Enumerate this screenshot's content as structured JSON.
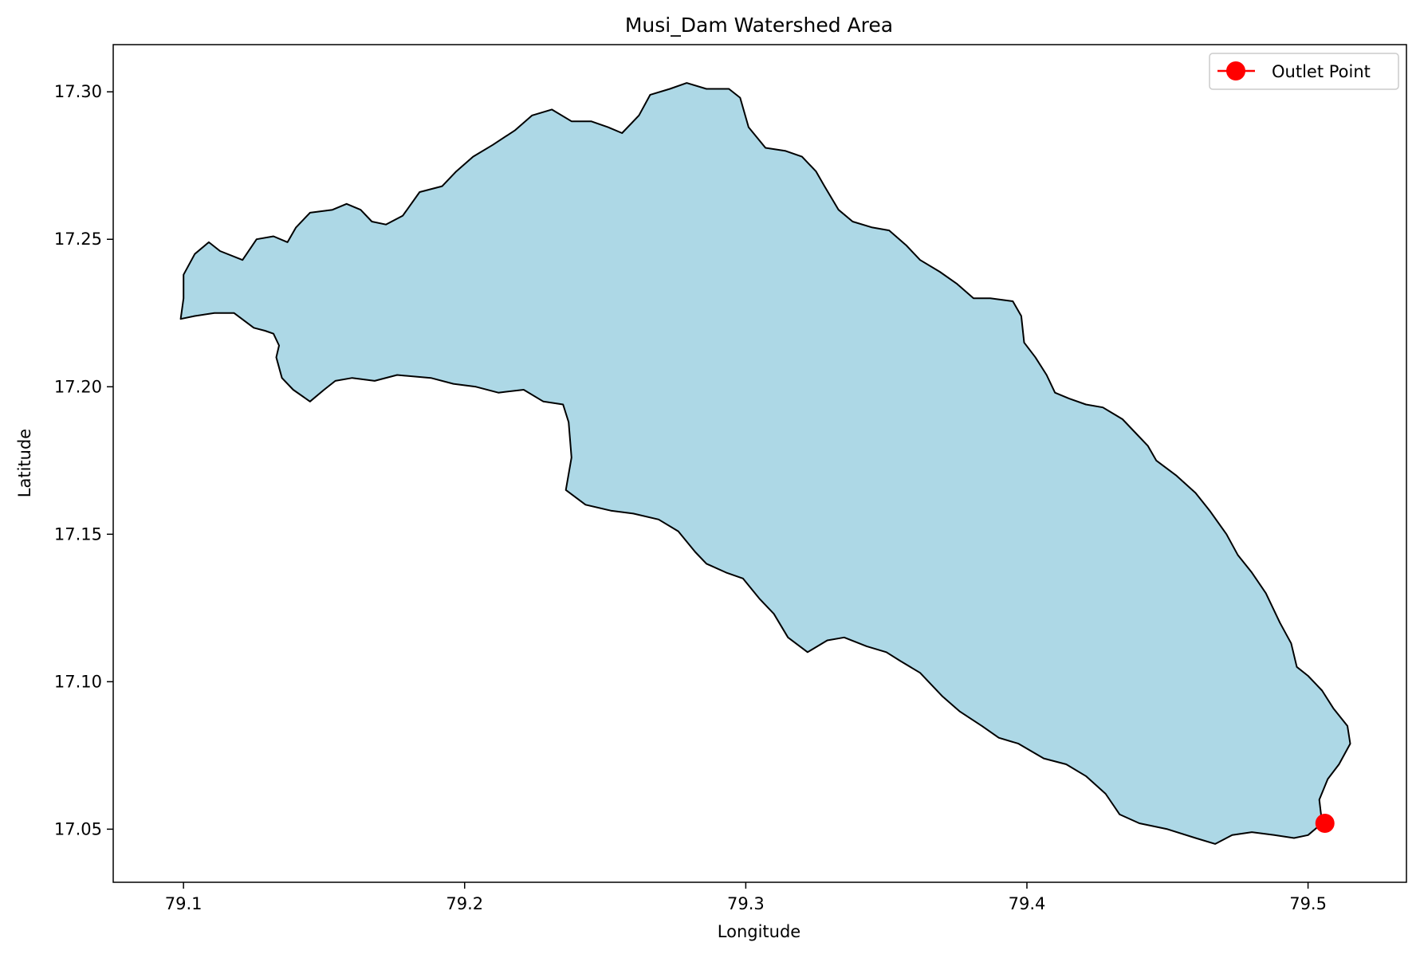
{
  "chart_data": {
    "type": "map",
    "title": "Musi_Dam Watershed Area",
    "xlabel": "Longitude",
    "ylabel": "Latitude",
    "xlim": [
      79.075,
      79.535
    ],
    "ylim": [
      17.032,
      17.316
    ],
    "x_ticks": [
      79.1,
      79.2,
      79.3,
      79.4,
      79.5
    ],
    "x_tick_labels": [
      "79.1",
      "79.2",
      "79.3",
      "79.4",
      "79.5"
    ],
    "y_ticks": [
      17.05,
      17.1,
      17.15,
      17.2,
      17.25,
      17.3
    ],
    "y_tick_labels": [
      "17.05",
      "17.10",
      "17.15",
      "17.20",
      "17.25",
      "17.30"
    ],
    "grid": false,
    "legend": {
      "position": "upper-right",
      "entries": [
        {
          "label": "Outlet Point",
          "color": "#ff0000",
          "marker": "circle-line"
        }
      ]
    },
    "watershed": {
      "fill_color": "#add8e6",
      "edge_color": "#000000",
      "boundary": [
        [
          79.1,
          17.238
        ],
        [
          79.104,
          17.245
        ],
        [
          79.109,
          17.249
        ],
        [
          79.113,
          17.246
        ],
        [
          79.121,
          17.243
        ],
        [
          79.126,
          17.25
        ],
        [
          79.132,
          17.251
        ],
        [
          79.137,
          17.249
        ],
        [
          79.14,
          17.254
        ],
        [
          79.145,
          17.259
        ],
        [
          79.153,
          17.26
        ],
        [
          79.158,
          17.262
        ],
        [
          79.163,
          17.26
        ],
        [
          79.167,
          17.256
        ],
        [
          79.172,
          17.255
        ],
        [
          79.178,
          17.258
        ],
        [
          79.184,
          17.266
        ],
        [
          79.192,
          17.268
        ],
        [
          79.197,
          17.273
        ],
        [
          79.203,
          17.278
        ],
        [
          79.21,
          17.282
        ],
        [
          79.218,
          17.287
        ],
        [
          79.224,
          17.292
        ],
        [
          79.231,
          17.294
        ],
        [
          79.238,
          17.29
        ],
        [
          79.245,
          17.29
        ],
        [
          79.251,
          17.288
        ],
        [
          79.256,
          17.286
        ],
        [
          79.262,
          17.292
        ],
        [
          79.266,
          17.299
        ],
        [
          79.273,
          17.301
        ],
        [
          79.279,
          17.303
        ],
        [
          79.286,
          17.301
        ],
        [
          79.294,
          17.301
        ],
        [
          79.298,
          17.298
        ],
        [
          79.301,
          17.288
        ],
        [
          79.307,
          17.281
        ],
        [
          79.314,
          17.28
        ],
        [
          79.32,
          17.278
        ],
        [
          79.325,
          17.273
        ],
        [
          79.328,
          17.268
        ],
        [
          79.333,
          17.26
        ],
        [
          79.338,
          17.256
        ],
        [
          79.345,
          17.254
        ],
        [
          79.351,
          17.253
        ],
        [
          79.357,
          17.248
        ],
        [
          79.362,
          17.243
        ],
        [
          79.369,
          17.239
        ],
        [
          79.375,
          17.235
        ],
        [
          79.381,
          17.23
        ],
        [
          79.387,
          17.23
        ],
        [
          79.395,
          17.229
        ],
        [
          79.398,
          17.224
        ],
        [
          79.399,
          17.215
        ],
        [
          79.403,
          17.21
        ],
        [
          79.407,
          17.204
        ],
        [
          79.41,
          17.198
        ],
        [
          79.415,
          17.196
        ],
        [
          79.421,
          17.194
        ],
        [
          79.427,
          17.193
        ],
        [
          79.434,
          17.189
        ],
        [
          79.439,
          17.184
        ],
        [
          79.443,
          17.18
        ],
        [
          79.446,
          17.175
        ],
        [
          79.453,
          17.17
        ],
        [
          79.46,
          17.164
        ],
        [
          79.465,
          17.158
        ],
        [
          79.471,
          17.15
        ],
        [
          79.475,
          17.143
        ],
        [
          79.48,
          17.137
        ],
        [
          79.485,
          17.13
        ],
        [
          79.49,
          17.12
        ],
        [
          79.494,
          17.113
        ],
        [
          79.496,
          17.105
        ],
        [
          79.5,
          17.102
        ],
        [
          79.505,
          17.097
        ],
        [
          79.509,
          17.091
        ],
        [
          79.514,
          17.085
        ],
        [
          79.515,
          17.079
        ],
        [
          79.511,
          17.072
        ],
        [
          79.507,
          17.067
        ],
        [
          79.504,
          17.06
        ],
        [
          79.505,
          17.052
        ],
        [
          79.5,
          17.048
        ],
        [
          79.495,
          17.047
        ],
        [
          79.488,
          17.048
        ],
        [
          79.48,
          17.049
        ],
        [
          79.473,
          17.048
        ],
        [
          79.467,
          17.045
        ],
        [
          79.46,
          17.047
        ],
        [
          79.45,
          17.05
        ],
        [
          79.44,
          17.052
        ],
        [
          79.433,
          17.055
        ],
        [
          79.428,
          17.062
        ],
        [
          79.421,
          17.068
        ],
        [
          79.414,
          17.072
        ],
        [
          79.406,
          17.074
        ],
        [
          79.397,
          17.079
        ],
        [
          79.39,
          17.081
        ],
        [
          79.384,
          17.085
        ],
        [
          79.376,
          17.09
        ],
        [
          79.37,
          17.095
        ],
        [
          79.362,
          17.103
        ],
        [
          79.355,
          17.107
        ],
        [
          79.35,
          17.11
        ],
        [
          79.343,
          17.112
        ],
        [
          79.335,
          17.115
        ],
        [
          79.329,
          17.114
        ],
        [
          79.322,
          17.11
        ],
        [
          79.315,
          17.115
        ],
        [
          79.31,
          17.123
        ],
        [
          79.305,
          17.128
        ],
        [
          79.299,
          17.135
        ],
        [
          79.293,
          17.137
        ],
        [
          79.286,
          17.14
        ],
        [
          79.282,
          17.144
        ],
        [
          79.276,
          17.151
        ],
        [
          79.269,
          17.155
        ],
        [
          79.26,
          17.157
        ],
        [
          79.252,
          17.158
        ],
        [
          79.243,
          17.16
        ],
        [
          79.236,
          17.165
        ],
        [
          79.238,
          17.176
        ],
        [
          79.237,
          17.188
        ],
        [
          79.235,
          17.194
        ],
        [
          79.228,
          17.195
        ],
        [
          79.221,
          17.199
        ],
        [
          79.212,
          17.198
        ],
        [
          79.204,
          17.2
        ],
        [
          79.196,
          17.201
        ],
        [
          79.188,
          17.203
        ],
        [
          79.176,
          17.204
        ],
        [
          79.168,
          17.202
        ],
        [
          79.16,
          17.203
        ],
        [
          79.154,
          17.202
        ],
        [
          79.15,
          17.199
        ],
        [
          79.145,
          17.195
        ],
        [
          79.139,
          17.199
        ],
        [
          79.135,
          17.203
        ],
        [
          79.133,
          17.21
        ],
        [
          79.134,
          17.214
        ],
        [
          79.132,
          17.218
        ],
        [
          79.129,
          17.219
        ],
        [
          79.125,
          17.22
        ],
        [
          79.118,
          17.225
        ],
        [
          79.111,
          17.225
        ],
        [
          79.104,
          17.224
        ],
        [
          79.099,
          17.223
        ],
        [
          79.1,
          17.23
        ],
        [
          79.1,
          17.238
        ]
      ]
    },
    "outlet_point": {
      "label": "Outlet Point",
      "lon": 79.506,
      "lat": 17.052,
      "color": "#ff0000"
    }
  }
}
